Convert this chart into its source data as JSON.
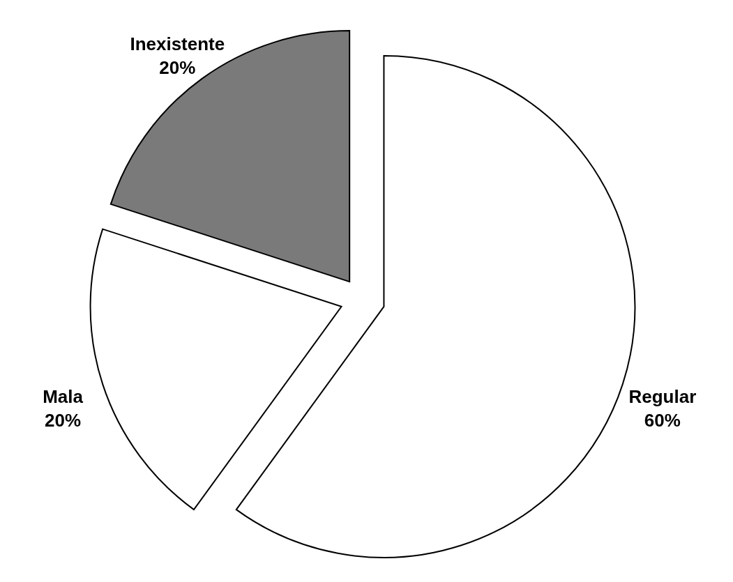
{
  "chart_data": {
    "type": "pie",
    "categories": [
      "Regular",
      "Mala",
      "Inexistente"
    ],
    "values": [
      60,
      20,
      20
    ],
    "colors": [
      "#ffffff",
      "#ffffff",
      "#7a7a7a"
    ],
    "value_labels": [
      "60%",
      "20%",
      "20%"
    ]
  }
}
